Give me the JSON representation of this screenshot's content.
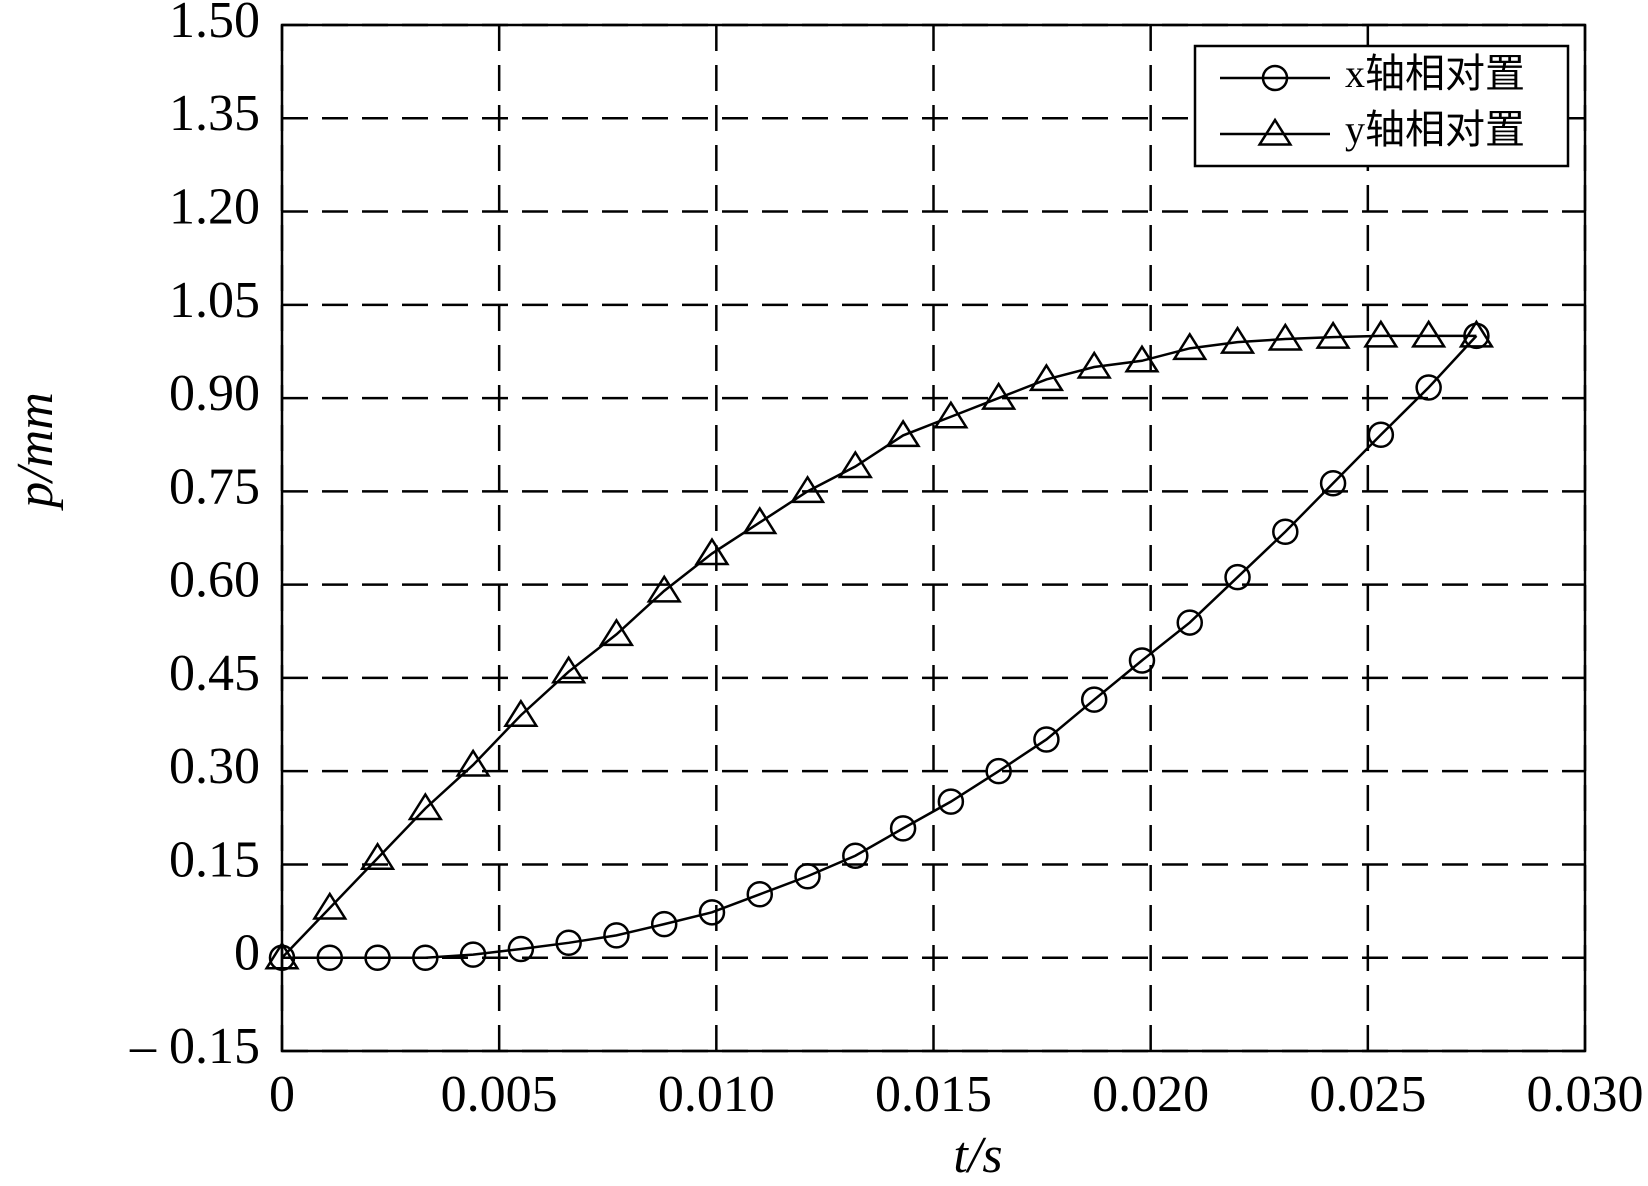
{
  "chart_data": {
    "type": "line",
    "x_label": "t/s",
    "y_label": "p/mm",
    "x": [
      0,
      0.0011,
      0.0022,
      0.0033,
      0.0044,
      0.0055,
      0.0066,
      0.0077,
      0.0088,
      0.0099,
      0.011,
      0.0121,
      0.0132,
      0.0143,
      0.0154,
      0.0165,
      0.0176,
      0.0187,
      0.0198,
      0.0209,
      0.022,
      0.0231,
      0.0242,
      0.0253,
      0.0264,
      0.0275
    ],
    "series": [
      {
        "name": "x轴相对置",
        "color": "#000000",
        "marker": "circle",
        "values": [
          0,
          0,
          0,
          0,
          0.005,
          0.014,
          0.024,
          0.036,
          0.054,
          0.073,
          0.102,
          0.131,
          0.164,
          0.208,
          0.251,
          0.3,
          0.351,
          0.415,
          0.478,
          0.539,
          0.612,
          0.685,
          0.763,
          0.841,
          0.917,
          1.0
        ]
      },
      {
        "name": "y轴相对置",
        "color": "#000000",
        "marker": "triangle",
        "values": [
          0,
          0.08,
          0.16,
          0.24,
          0.31,
          0.39,
          0.46,
          0.52,
          0.59,
          0.65,
          0.7,
          0.75,
          0.79,
          0.84,
          0.87,
          0.9,
          0.93,
          0.95,
          0.96,
          0.98,
          0.99,
          0.995,
          0.998,
          1.0,
          1.0,
          1.0
        ]
      }
    ],
    "xlim": [
      0,
      0.03
    ],
    "xticks": [
      0,
      0.005,
      {
        "value": 0.01,
        "label": "0.010"
      },
      0.015,
      {
        "value": 0.02,
        "label": "0.020"
      },
      0.025,
      {
        "value": 0.03,
        "label": "0.030"
      }
    ],
    "ylim": [
      -0.15,
      1.5
    ],
    "yticks": [
      {
        "value": -0.15,
        "label": "– 0.15"
      },
      0,
      0.15,
      {
        "value": 0.3,
        "label": "0.30"
      },
      0.45,
      {
        "value": 0.6,
        "label": "0.60"
      },
      0.75,
      {
        "value": 0.9,
        "label": "0.90"
      },
      1.05,
      {
        "value": 1.2,
        "label": "1.20"
      },
      1.35,
      {
        "value": 1.5,
        "label": "1.50"
      }
    ],
    "grid": true,
    "legend": "upper right"
  }
}
